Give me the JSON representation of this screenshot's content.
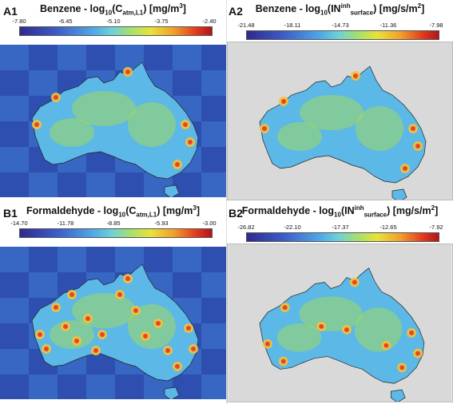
{
  "panels": [
    {
      "id": "A1",
      "label": "A1",
      "title_pre": "Benzene - log",
      "title_sub1": "10",
      "title_mid": "(C",
      "title_sub2": "atm,L1",
      "title_post": ") [mg/m",
      "title_sup": "3",
      "title_end": "]",
      "ticks": [
        "-7.80",
        "-6.45",
        "-5.10",
        "-3.75",
        "-2.40"
      ],
      "background": "rest-of-map-filled",
      "hotspot_level": "low"
    },
    {
      "id": "A2",
      "label": "A2",
      "title_pre": "Benzene - log",
      "title_sub1": "10",
      "title_mid": "(IN",
      "title_sup_inh": "inh",
      "title_sub2": "surface",
      "title_post": ") [mg/s/m",
      "title_sup": "2",
      "title_end": "]",
      "ticks": [
        "-21.48",
        "-18.11",
        "-14.73",
        "-11.36",
        "-7.98"
      ],
      "background": "grey",
      "hotspot_level": "low"
    },
    {
      "id": "B1",
      "label": "B1",
      "title_pre": "Formaldehyde - log",
      "title_sub1": "10",
      "title_mid": "(C",
      "title_sub2": "atm,L1",
      "title_post": ") [mg/m",
      "title_sup": "3",
      "title_end": "]",
      "ticks": [
        "-14.70",
        "-11.78",
        "-8.85",
        "-5.93",
        "-3.00"
      ],
      "background": "rest-of-map-filled",
      "hotspot_level": "high"
    },
    {
      "id": "B2",
      "label": "B2",
      "title_pre": "Formaldehyde - log",
      "title_sub1": "10",
      "title_mid": "(IN",
      "title_sup_inh": "inh",
      "title_sub2": "surface",
      "title_post": ") [mg/s/m",
      "title_sup": "2",
      "title_end": "]",
      "ticks": [
        "-26.82",
        "-22.10",
        "-17.37",
        "-12.65",
        "-7.92"
      ],
      "background": "grey",
      "hotspot_level": "medium"
    }
  ],
  "colors": {
    "ocean_deep": "#2e4fb0",
    "ocean_mid": "#3f7fd4",
    "land_base": "#5cb8e6",
    "land_mid": "#9fd860",
    "hot": "#e8442a",
    "grey_bg": "#d9d9d9"
  }
}
